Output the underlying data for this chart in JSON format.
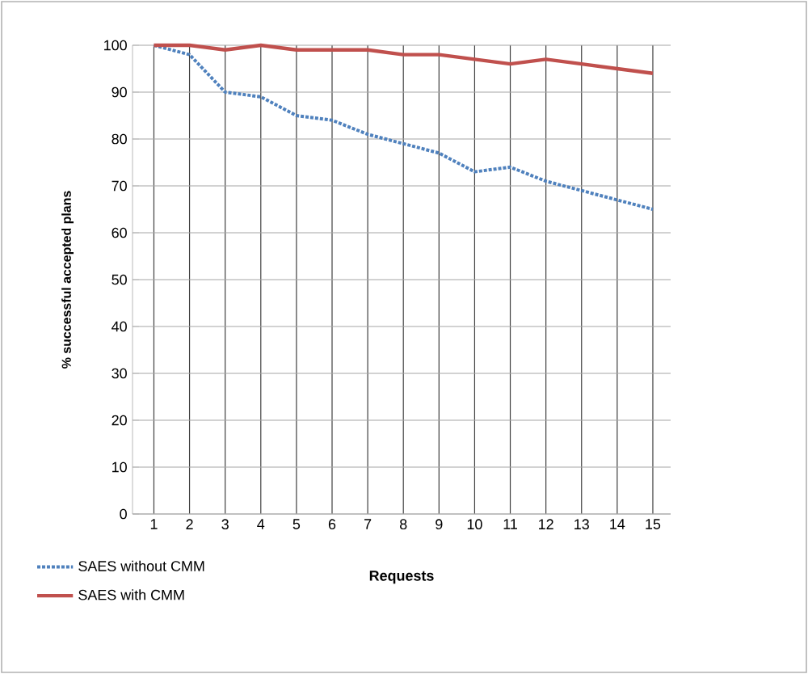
{
  "chart_data": {
    "type": "line",
    "xlabel": "Requests",
    "ylabel": "% successful accepted plans",
    "categories": [
      "1",
      "2",
      "3",
      "4",
      "5",
      "6",
      "7",
      "8",
      "9",
      "10",
      "11",
      "12",
      "13",
      "14",
      "15"
    ],
    "series": [
      {
        "name": "SAES without CMM",
        "color": "#4f81bd",
        "line_style": "dotted",
        "values": [
          100,
          98,
          90,
          89,
          85,
          84,
          81,
          79,
          77,
          73,
          74,
          71,
          69,
          67,
          65
        ]
      },
      {
        "name": "SAES with CMM",
        "color": "#c0504d",
        "line_style": "solid",
        "values": [
          100,
          100,
          99,
          100,
          99,
          99,
          99,
          98,
          98,
          97,
          96,
          97,
          96,
          95,
          94
        ]
      }
    ],
    "ylim": [
      0,
      100
    ],
    "yticks": [
      0,
      10,
      20,
      30,
      40,
      50,
      60,
      70,
      80,
      90,
      100
    ],
    "grid": true,
    "legend": "bottom left",
    "marker": "none"
  }
}
